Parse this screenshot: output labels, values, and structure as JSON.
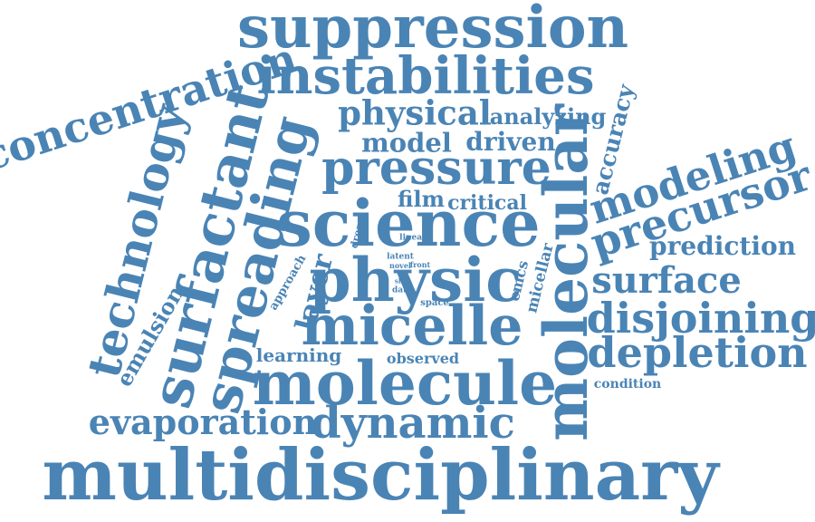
{
  "style": {
    "color": "#4a84b5",
    "background": "#ffffff"
  },
  "words": [
    "suppression",
    "instabilities",
    "concentration",
    "physical",
    "analyzing",
    "model",
    "driven",
    "accuracy",
    "pressure",
    "technology",
    "surfactant",
    "spreading",
    "science",
    "molecular",
    "modeling",
    "precursor",
    "film",
    "critical",
    "drop",
    "linear",
    "prediction",
    "latent",
    "novel",
    "front",
    "approach",
    "physic",
    "slip",
    "data",
    "cmcs",
    "micellar",
    "surface",
    "layer",
    "space",
    "emulsion",
    "micelle",
    "disjoining",
    "learning",
    "observed",
    "depletion",
    "molecule",
    "condition",
    "evaporation",
    "dynamic",
    "multidisciplinary"
  ]
}
